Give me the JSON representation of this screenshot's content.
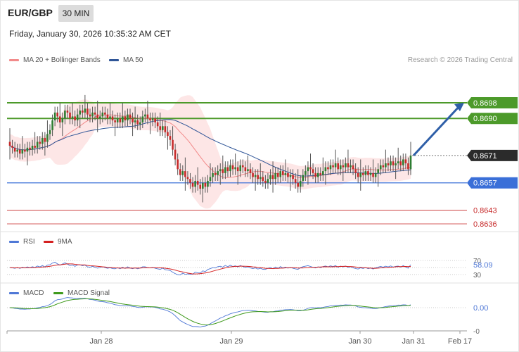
{
  "header": {
    "symbol": "EUR/GBP",
    "timeframe": "30 MIN",
    "datetime": "Friday, January 30, 2026 10:35:32 AM CET"
  },
  "legend": {
    "ma20": "MA 20 + Bollinger Bands",
    "ma50": "MA 50",
    "credit": "Research © 2026 Trading Central"
  },
  "colors": {
    "up": "#2e7d32",
    "down": "#c62828",
    "ma20": "#f28a8a",
    "ma50": "#2f5597",
    "band": "#fde3e3",
    "resistance": "#4c9a2a",
    "support": "#3a6fd8",
    "target": "#c62828",
    "arrow": "#2f5fa8"
  },
  "chart_data": [
    {
      "type": "candlestick",
      "title": "EUR/GBP",
      "x_ticks": [
        "Jan 28",
        "Jan 29",
        "Jan 30",
        "Jan 31",
        "Feb 17"
      ],
      "y_range": [
        0.8633,
        0.8707
      ],
      "levels": [
        {
          "name": "resistance-2",
          "value": 0.8698,
          "label": "0.8698",
          "kind": "resistance"
        },
        {
          "name": "resistance-1",
          "value": 0.869,
          "label": "0.8690",
          "kind": "resistance"
        },
        {
          "name": "last-price",
          "value": 0.8671,
          "label": "0.8671",
          "kind": "price"
        },
        {
          "name": "pivot",
          "value": 0.8657,
          "label": "0.8657",
          "kind": "support"
        },
        {
          "name": "support-1",
          "value": 0.8643,
          "label": "0.8643",
          "kind": "target"
        },
        {
          "name": "support-2",
          "value": 0.8636,
          "label": "0.8636",
          "kind": "target"
        }
      ],
      "closes": [
        0.8676,
        0.8675,
        0.8673,
        0.8674,
        0.8672,
        0.8674,
        0.8673,
        0.8675,
        0.8674,
        0.8676,
        0.8675,
        0.8678,
        0.8677,
        0.868,
        0.8678,
        0.8682,
        0.8684,
        0.8689,
        0.8693,
        0.8691,
        0.8688,
        0.869,
        0.8694,
        0.8693,
        0.869,
        0.8691,
        0.8689,
        0.8692,
        0.8694,
        0.8693,
        0.8695,
        0.8692,
        0.8691,
        0.8693,
        0.8692,
        0.869,
        0.8691,
        0.8693,
        0.8692,
        0.869,
        0.8691,
        0.8689,
        0.8688,
        0.869,
        0.8688,
        0.8691,
        0.8689,
        0.8692,
        0.869,
        0.8688,
        0.8689,
        0.8687,
        0.8688,
        0.8691,
        0.8692,
        0.869,
        0.8689,
        0.869,
        0.8688,
        0.8686,
        0.8684,
        0.8686,
        0.8683,
        0.8681,
        0.8679,
        0.8674,
        0.8669,
        0.8664,
        0.8661,
        0.8663,
        0.866,
        0.8659,
        0.8657,
        0.8655,
        0.8658,
        0.8656,
        0.8654,
        0.8657,
        0.8655,
        0.8658,
        0.866,
        0.8662,
        0.8661,
        0.8663,
        0.8664,
        0.8662,
        0.8665,
        0.8663,
        0.8666,
        0.8664,
        0.8665,
        0.8663,
        0.8666,
        0.8665,
        0.8663,
        0.8664,
        0.8662,
        0.866,
        0.8661,
        0.8659,
        0.866,
        0.8658,
        0.8657,
        0.8659,
        0.8661,
        0.8659,
        0.8662,
        0.866,
        0.8663,
        0.8661,
        0.8662,
        0.866,
        0.8661,
        0.8659,
        0.8657,
        0.8655,
        0.8658,
        0.8661,
        0.8663,
        0.8665,
        0.8664,
        0.8662,
        0.866,
        0.8662,
        0.8661,
        0.8663,
        0.8665,
        0.8664,
        0.8666,
        0.8665,
        0.8667,
        0.8664,
        0.8666,
        0.8665,
        0.8667,
        0.8665,
        0.8666,
        0.8664,
        0.8662,
        0.866,
        0.8662,
        0.8661,
        0.8663,
        0.8661,
        0.8662,
        0.866,
        0.8662,
        0.8664,
        0.8666,
        0.8665,
        0.8667,
        0.8666,
        0.8668,
        0.8666,
        0.8667,
        0.8668,
        0.8666,
        0.8669,
        0.8667,
        0.8664,
        0.8671
      ]
    },
    {
      "type": "line",
      "title": "RSI",
      "series": [
        {
          "name": "RSI"
        },
        {
          "name": "9MA"
        }
      ],
      "y_ticks": [
        70,
        30
      ],
      "last_value": 58.09,
      "last_label": "58.09"
    },
    {
      "type": "line",
      "title": "MACD",
      "series": [
        {
          "name": "MACD"
        },
        {
          "name": "MACD Signal"
        }
      ],
      "y_ticks": [
        "0.00",
        "-0"
      ],
      "last_label": "0.00"
    }
  ],
  "rsi": {
    "label": "RSI",
    "ma_label": "9MA",
    "tick_70": "70",
    "tick_30": "30",
    "value": "58.09"
  },
  "macd": {
    "label": "MACD",
    "signal_label": "MACD Signal",
    "value": "0.00",
    "tick_neg": "-0"
  }
}
